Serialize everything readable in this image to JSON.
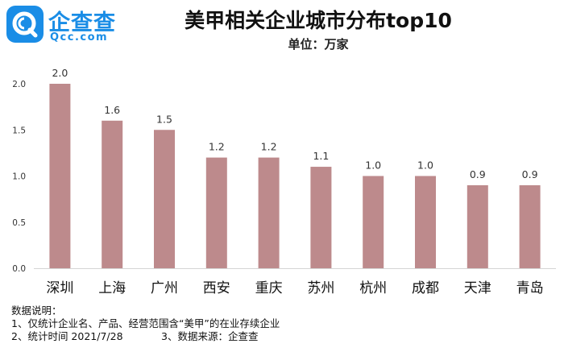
{
  "brand": {
    "name": "企查查",
    "domain": "Qcc.com",
    "logo_icon": "qcc-logo-icon",
    "color": "#1a8de6"
  },
  "title": "美甲相关企业城市分布top10",
  "subtitle": "单位：万家",
  "chart_data": {
    "type": "bar",
    "title": "美甲相关企业城市分布top10",
    "subtitle": "单位：万家",
    "categories": [
      "深圳",
      "上海",
      "广州",
      "西安",
      "重庆",
      "苏州",
      "杭州",
      "成都",
      "天津",
      "青岛"
    ],
    "values": [
      2.0,
      1.6,
      1.5,
      1.2,
      1.2,
      1.1,
      1.0,
      1.0,
      0.9,
      0.9
    ],
    "data_labels": [
      "2.0",
      "1.6",
      "1.5",
      "1.2",
      "1.2",
      "1.1",
      "1.0",
      "1.0",
      "0.9",
      "0.9"
    ],
    "y_ticks": [
      0.0,
      0.5,
      1.0,
      1.5,
      2.0
    ],
    "y_tick_labels": [
      "0.0",
      "0.5",
      "1.0",
      "1.5",
      "2.0"
    ],
    "ylim": [
      0,
      2.0
    ],
    "xlabel": "",
    "ylabel": "",
    "grid": false,
    "bar_color": "#bd8a8c",
    "axis_color": "#d4d4d4"
  },
  "notes": {
    "heading": "数据说明：",
    "line1": "1、仅统计企业名、产品、经营范围含“美甲”的在业存续企业",
    "line2_time": "2、统计时间 2021/7/28",
    "line2_source": "3、数据来源：企查查"
  }
}
